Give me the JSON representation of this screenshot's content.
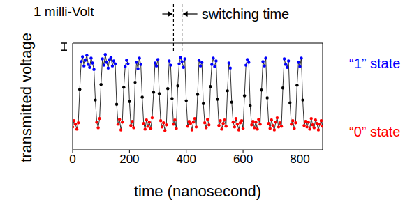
{
  "chart_data": {
    "type": "line",
    "xlabel": "time (nanosecond)",
    "ylabel": "transmitted voltage",
    "x": [
      0,
      5,
      10,
      15,
      20,
      25,
      30,
      35,
      40,
      45,
      50,
      55,
      60,
      65,
      70,
      75,
      80,
      85,
      90,
      95,
      100,
      105,
      110,
      115,
      120,
      125,
      130,
      135,
      140,
      145,
      150,
      155,
      160,
      165,
      170,
      175,
      180,
      185,
      190,
      195,
      200,
      205,
      210,
      215,
      220,
      225,
      230,
      235,
      240,
      245,
      250,
      255,
      260,
      265,
      270,
      275,
      280,
      285,
      290,
      295,
      300,
      305,
      310,
      315,
      320,
      325,
      330,
      335,
      340,
      345,
      350,
      355,
      360,
      365,
      370,
      375,
      380,
      385,
      390,
      395,
      400,
      405,
      410,
      415,
      420,
      425,
      430,
      435,
      440,
      445,
      450,
      455,
      460,
      465,
      470,
      475,
      480,
      485,
      490,
      495,
      500,
      505,
      510,
      515,
      520,
      525,
      530,
      535,
      540,
      545,
      550,
      555,
      560,
      565,
      570,
      575,
      580,
      585,
      590,
      595,
      600,
      605,
      610,
      615,
      620,
      625,
      630,
      635,
      640,
      645,
      650,
      655,
      660,
      665,
      670,
      675,
      680,
      685,
      690,
      695,
      700,
      705,
      710,
      715,
      720,
      725,
      730,
      735,
      740,
      745,
      750,
      755,
      760,
      765,
      770,
      775,
      780,
      785,
      790,
      795,
      800,
      805,
      810,
      815,
      820,
      825,
      830,
      835,
      840,
      845,
      850,
      855,
      860,
      865,
      870,
      875,
      880
    ],
    "values": [
      3.2,
      4.1,
      3.6,
      2.9,
      3.8,
      8.5,
      12.4,
      13.1,
      11.8,
      12.6,
      13.3,
      12.0,
      11.6,
      12.9,
      12.2,
      11.3,
      7.0,
      3.9,
      3.1,
      4.4,
      9.2,
      12.8,
      11.9,
      13.4,
      12.3,
      11.5,
      12.7,
      13.0,
      11.8,
      12.5,
      12.1,
      6.4,
      3.6,
      4.3,
      2.8,
      3.9,
      8.8,
      11.7,
      12.6,
      12.1,
      6.8,
      3.4,
      4.0,
      3.1,
      9.5,
      12.3,
      11.4,
      12.9,
      12.0,
      7.4,
      3.7,
      2.9,
      4.2,
      3.3,
      3.9,
      3.0,
      4.5,
      8.1,
      12.2,
      11.8,
      12.7,
      7.9,
      4.1,
      3.2,
      3.8,
      2.7,
      3.5,
      8.6,
      12.5,
      11.9,
      7.2,
      3.6,
      4.2,
      3.0,
      9.0,
      12.1,
      13.0,
      12.4,
      11.6,
      12.8,
      6.9,
      3.3,
      4.0,
      3.7,
      2.8,
      3.9,
      4.4,
      3.2,
      7.8,
      12.6,
      11.8,
      12.3,
      6.5,
      3.8,
      3.1,
      4.3,
      3.5,
      8.9,
      12.0,
      12.9,
      11.7,
      12.5,
      7.1,
      3.4,
      4.1,
      2.9,
      3.7,
      4.2,
      3.3,
      8.3,
      12.2,
      11.5,
      6.7,
      3.9,
      3.2,
      4.4,
      3.6,
      2.8,
      3.8,
      4.1,
      3.0,
      7.6,
      11.9,
      12.7,
      12.3,
      6.2,
      3.5,
      4.0,
      3.1,
      3.9,
      2.9,
      4.3,
      3.6,
      8.4,
      12.4,
      11.8,
      12.9,
      7.3,
      3.7,
      3.0,
      4.2,
      3.4,
      2.8,
      3.9,
      4.5,
      3.2,
      3.8,
      3.3,
      8.7,
      12.8,
      12.0,
      11.6,
      12.5,
      6.6,
      3.6,
      4.1,
      3.0,
      3.8,
      9.1,
      12.3,
      11.7,
      12.9,
      7.0,
      3.4,
      4.0,
      3.2,
      3.9,
      2.9,
      4.4,
      3.5,
      3.1,
      4.2,
      3.7,
      2.8,
      3.6,
      4.1,
      3.3
    ],
    "colors": [
      "#ff0000",
      "#ff0000",
      "#ff0000",
      "#ff0000",
      "#ff0000",
      "#000000",
      "#0000ff",
      "#0000ff",
      "#0000ff",
      "#0000ff",
      "#0000ff",
      "#0000ff",
      "#0000ff",
      "#0000ff",
      "#0000ff",
      "#0000ff",
      "#000000",
      "#ff0000",
      "#ff0000",
      "#ff0000",
      "#000000",
      "#0000ff",
      "#0000ff",
      "#0000ff",
      "#0000ff",
      "#0000ff",
      "#0000ff",
      "#0000ff",
      "#0000ff",
      "#0000ff",
      "#0000ff",
      "#000000",
      "#ff0000",
      "#ff0000",
      "#ff0000",
      "#ff0000",
      "#000000",
      "#0000ff",
      "#0000ff",
      "#0000ff",
      "#000000",
      "#ff0000",
      "#ff0000",
      "#ff0000",
      "#000000",
      "#0000ff",
      "#0000ff",
      "#0000ff",
      "#0000ff",
      "#000000",
      "#ff0000",
      "#ff0000",
      "#ff0000",
      "#ff0000",
      "#ff0000",
      "#ff0000",
      "#ff0000",
      "#000000",
      "#0000ff",
      "#0000ff",
      "#0000ff",
      "#000000",
      "#ff0000",
      "#ff0000",
      "#ff0000",
      "#ff0000",
      "#ff0000",
      "#000000",
      "#0000ff",
      "#0000ff",
      "#000000",
      "#ff0000",
      "#ff0000",
      "#ff0000",
      "#000000",
      "#0000ff",
      "#0000ff",
      "#0000ff",
      "#0000ff",
      "#0000ff",
      "#000000",
      "#ff0000",
      "#ff0000",
      "#ff0000",
      "#ff0000",
      "#ff0000",
      "#ff0000",
      "#ff0000",
      "#000000",
      "#0000ff",
      "#0000ff",
      "#0000ff",
      "#000000",
      "#ff0000",
      "#ff0000",
      "#ff0000",
      "#ff0000",
      "#000000",
      "#0000ff",
      "#0000ff",
      "#0000ff",
      "#0000ff",
      "#000000",
      "#ff0000",
      "#ff0000",
      "#ff0000",
      "#ff0000",
      "#ff0000",
      "#ff0000",
      "#000000",
      "#0000ff",
      "#0000ff",
      "#000000",
      "#ff0000",
      "#ff0000",
      "#ff0000",
      "#ff0000",
      "#ff0000",
      "#ff0000",
      "#ff0000",
      "#ff0000",
      "#000000",
      "#0000ff",
      "#0000ff",
      "#0000ff",
      "#000000",
      "#ff0000",
      "#ff0000",
      "#ff0000",
      "#ff0000",
      "#ff0000",
      "#ff0000",
      "#ff0000",
      "#000000",
      "#0000ff",
      "#0000ff",
      "#0000ff",
      "#000000",
      "#ff0000",
      "#ff0000",
      "#ff0000",
      "#ff0000",
      "#ff0000",
      "#ff0000",
      "#ff0000",
      "#ff0000",
      "#ff0000",
      "#ff0000",
      "#000000",
      "#0000ff",
      "#0000ff",
      "#0000ff",
      "#0000ff",
      "#000000",
      "#ff0000",
      "#ff0000",
      "#ff0000",
      "#ff0000",
      "#000000",
      "#0000ff",
      "#0000ff",
      "#0000ff",
      "#000000",
      "#ff0000",
      "#ff0000",
      "#ff0000",
      "#ff0000",
      "#ff0000",
      "#ff0000",
      "#ff0000",
      "#ff0000",
      "#ff0000",
      "#ff0000",
      "#ff0000",
      "#ff0000",
      "#ff0000",
      "#ff0000"
    ],
    "marker": "circle",
    "line_style": "solid",
    "grid": false,
    "tick_labels": "x",
    "xlim": [
      0,
      880
    ],
    "xticks": [
      0,
      200,
      400,
      600,
      800
    ],
    "ylim": [
      0,
      15
    ],
    "yticks": [
      0,
      5,
      10,
      15
    ],
    "scale_bar": {
      "text": "1 milli-Volt",
      "value": 1
    },
    "switching_time": {
      "text": "switching time",
      "x": [
        355,
        385
      ]
    },
    "state_labels": [
      {
        "text": "“1” state",
        "color": "#0000ff"
      },
      {
        "text": "“0” state",
        "color": "#ff0000"
      }
    ]
  }
}
